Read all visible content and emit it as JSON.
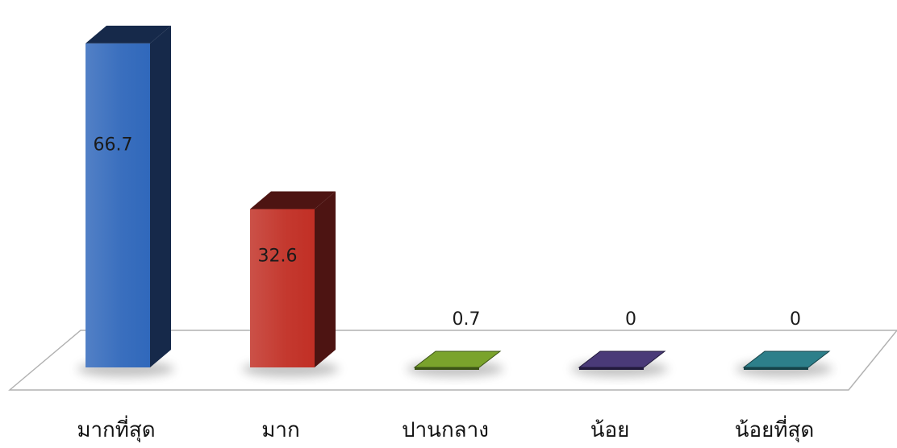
{
  "chart_data": {
    "type": "bar",
    "style": "3d-column",
    "categories": [
      "มากที่สุด",
      "มาก",
      "ปานกลาง",
      "น้อย",
      "น้อยที่สุด"
    ],
    "values": [
      66.7,
      32.6,
      0.7,
      0,
      0
    ],
    "value_labels": [
      "66.7",
      "32.6",
      "0.7",
      "0",
      "0"
    ],
    "ylim": [
      0,
      70
    ],
    "grid": false,
    "legend": "none",
    "title": "",
    "xlabel": "",
    "ylabel": "",
    "colors": [
      "#3a6fbe",
      "#c4392f",
      "#7aa32c",
      "#4a3a78",
      "#2d7f8a"
    ],
    "side_colors": [
      "#16294a",
      "#4d1412",
      "#3c5416",
      "#221a3c",
      "#154248"
    ]
  }
}
